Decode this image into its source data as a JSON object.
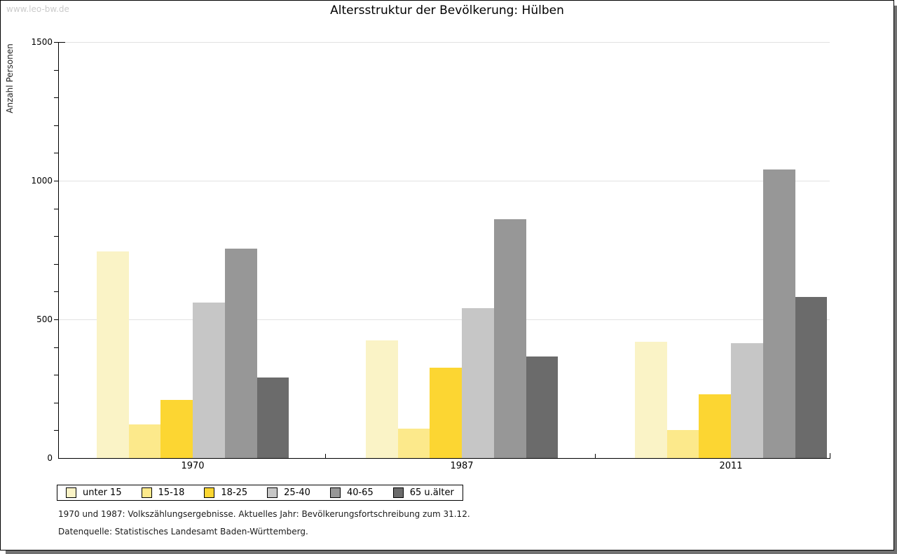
{
  "watermark": "www.leo-bw.de",
  "title": "Altersstruktur der Bevölkerung: Hülben",
  "chart_data": {
    "type": "bar",
    "title": "Altersstruktur der Bevölkerung: Hülben",
    "ylabel": "Anzahl Personen",
    "xlabel": "",
    "categories": [
      "1970",
      "1987",
      "2011"
    ],
    "series": [
      {
        "name": "unter 15",
        "color": "#faf3c6",
        "values": [
          745,
          425,
          420
        ]
      },
      {
        "name": "15-18",
        "color": "#fce98b",
        "values": [
          120,
          105,
          100
        ]
      },
      {
        "name": "18-25",
        "color": "#fcd632",
        "values": [
          210,
          325,
          230
        ]
      },
      {
        "name": "25-40",
        "color": "#c6c6c6",
        "values": [
          560,
          540,
          415
        ]
      },
      {
        "name": "40-65",
        "color": "#979797",
        "values": [
          755,
          860,
          1040
        ]
      },
      {
        "name": "65 u.älter",
        "color": "#6b6b6b",
        "values": [
          290,
          365,
          580
        ]
      }
    ],
    "ylim": [
      0,
      1500
    ],
    "yticks": [
      0,
      500,
      1000,
      1500
    ],
    "minor_tick_step": 100,
    "grid": true,
    "legend_position": "bottom"
  },
  "footnotes": [
    "1970 und 1987: Volkszählungsergebnisse. Aktuelles Jahr: Bevölkerungsfortschreibung zum 31.12.",
    "Datenquelle: Statistisches Landesamt Baden-Württemberg."
  ]
}
